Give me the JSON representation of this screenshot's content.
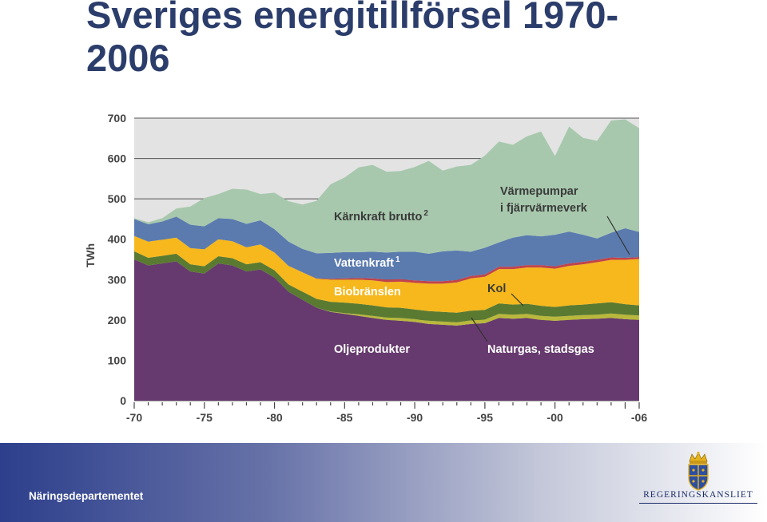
{
  "header": {
    "title": "Sveriges energitillförsel 1970-2006"
  },
  "footer": {
    "department": "Näringsdepartementet",
    "logo_text": "REGERINGSKANSLIET"
  },
  "chart_data": {
    "type": "area",
    "stacked": true,
    "title": "",
    "xlabel": "",
    "ylabel": "TWh",
    "xlim": [
      1970,
      2006
    ],
    "ylim": [
      0,
      700
    ],
    "yticks": [
      0,
      100,
      200,
      300,
      400,
      500,
      600,
      700
    ],
    "xtick_labels": [
      {
        "x": 1970,
        "label": "-70"
      },
      {
        "x": 1975,
        "label": "-75"
      },
      {
        "x": 1980,
        "label": "-80"
      },
      {
        "x": 1985,
        "label": "-85"
      },
      {
        "x": 1990,
        "label": "-90"
      },
      {
        "x": 1995,
        "label": "-95"
      },
      {
        "x": 2000,
        "label": "-00"
      },
      {
        "x": 2006,
        "label": "-06"
      }
    ],
    "grid": true,
    "x": [
      1970,
      1971,
      1972,
      1973,
      1974,
      1975,
      1976,
      1977,
      1978,
      1979,
      1980,
      1981,
      1982,
      1983,
      1984,
      1985,
      1986,
      1987,
      1988,
      1989,
      1990,
      1991,
      1992,
      1993,
      1994,
      1995,
      1996,
      1997,
      1998,
      1999,
      2000,
      2001,
      2002,
      2003,
      2004,
      2005,
      2006
    ],
    "series": [
      {
        "name": "Oljeprodukter",
        "color": "#663a6e",
        "values": [
          350,
          335,
          340,
          345,
          320,
          315,
          340,
          335,
          320,
          325,
          305,
          270,
          250,
          230,
          220,
          215,
          210,
          205,
          200,
          198,
          195,
          190,
          188,
          186,
          190,
          192,
          205,
          203,
          205,
          200,
          198,
          200,
          202,
          203,
          205,
          202,
          200
        ]
      },
      {
        "name": "Naturgas, stadsgas",
        "color": "#b9b83c",
        "values": [
          0,
          0,
          0,
          0,
          0,
          0,
          0,
          0,
          0,
          0,
          0,
          0,
          0,
          0,
          1,
          2,
          4,
          5,
          6,
          7,
          7,
          8,
          8,
          8,
          9,
          9,
          10,
          10,
          10,
          10,
          10,
          10,
          10,
          10,
          11,
          11,
          11
        ]
      },
      {
        "name": "Kol",
        "color": "#5a7a31",
        "values": [
          20,
          19,
          19,
          19,
          18,
          18,
          18,
          18,
          18,
          18,
          18,
          18,
          20,
          22,
          24,
          26,
          26,
          26,
          25,
          25,
          24,
          24,
          24,
          24,
          24,
          24,
          26,
          25,
          25,
          25,
          24,
          26,
          26,
          28,
          28,
          26,
          25
        ]
      },
      {
        "name": "Biobränslen",
        "color": "#f6b81c",
        "values": [
          38,
          40,
          40,
          40,
          40,
          42,
          42,
          42,
          42,
          44,
          44,
          46,
          48,
          50,
          55,
          57,
          60,
          62,
          63,
          65,
          66,
          68,
          70,
          75,
          80,
          82,
          85,
          88,
          90,
          95,
          95,
          98,
          100,
          102,
          105,
          110,
          115
        ]
      },
      {
        "name": "Värmepumpar i fjärrvärmeverk",
        "color": "#c1434b",
        "values": [
          0,
          0,
          0,
          0,
          0,
          0,
          0,
          0,
          0,
          0,
          0,
          0,
          0,
          1,
          2,
          3,
          4,
          5,
          6,
          6,
          6,
          6,
          6,
          6,
          6,
          6,
          6,
          6,
          6,
          6,
          6,
          6,
          6,
          6,
          6,
          5,
          5
        ]
      },
      {
        "name": "Vattenkraft 1",
        "color": "#5b7baf",
        "values": [
          42,
          43,
          45,
          52,
          58,
          57,
          52,
          55,
          58,
          60,
          58,
          60,
          58,
          62,
          64,
          65,
          64,
          66,
          67,
          68,
          71,
          68,
          74,
          73,
          60,
          66,
          60,
          72,
          74,
          71,
          78,
          79,
          67,
          53,
          61,
          73,
          62
        ]
      },
      {
        "name": "Kärnkraft brutto 2",
        "color": "#a7c8ad",
        "values": [
          2,
          5,
          8,
          20,
          45,
          70,
          60,
          75,
          85,
          65,
          90,
          100,
          110,
          130,
          170,
          185,
          210,
          215,
          200,
          200,
          210,
          230,
          200,
          208,
          215,
          228,
          250,
          230,
          245,
          260,
          195,
          260,
          240,
          242,
          278,
          270,
          257
        ]
      }
    ],
    "annotations": [
      {
        "text": "Kärnkraft brutto",
        "sup": "2",
        "color": "#3a3a3a"
      },
      {
        "text": "Vattenkraft",
        "sup": "1",
        "color": "#ffffff"
      },
      {
        "text": "Värmepumpar",
        "color": "#3a3a3a"
      },
      {
        "text": "i fjärrvärmeverk",
        "color": "#3a3a3a"
      },
      {
        "text": "Biobränslen",
        "color": "#ffffff"
      },
      {
        "text": "Kol",
        "color": "#3a3a3a"
      },
      {
        "text": "Oljeprodukter",
        "color": "#ffffff"
      },
      {
        "text": "Naturgas, stadsgas",
        "color": "#ffffff"
      }
    ]
  }
}
